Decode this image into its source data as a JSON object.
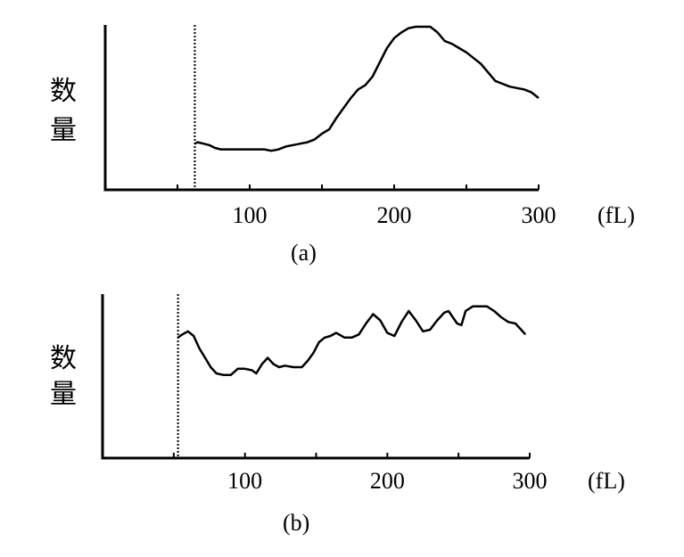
{
  "chart_data": [
    {
      "type": "line",
      "panel_label": "(a)",
      "ylabel": "数量",
      "xunit": "(fL)",
      "xlim": [
        0,
        300
      ],
      "ylim": [
        0,
        100
      ],
      "xticks": [
        50,
        100,
        150,
        200,
        250,
        300
      ],
      "xtick_labels": [
        "100",
        "200",
        "300"
      ],
      "xtick_label_values": [
        100,
        200,
        300
      ],
      "threshold_x": 62,
      "grid": false,
      "series": [
        {
          "x": [
            62,
            64,
            68,
            72,
            76,
            80,
            85,
            90,
            95,
            100,
            105,
            110,
            115,
            120,
            125,
            130,
            135,
            140,
            145,
            150,
            155,
            160,
            165,
            170,
            175,
            180,
            185,
            190,
            195,
            200,
            205,
            210,
            215,
            220,
            225,
            230,
            235,
            240,
            245,
            250,
            255,
            260,
            265,
            270,
            275,
            280,
            285,
            290,
            295,
            300
          ],
          "y": [
            18,
            19,
            18,
            17,
            15,
            14,
            14,
            14,
            14,
            14,
            14,
            14,
            13,
            14,
            16,
            17,
            18,
            19,
            21,
            25,
            28,
            36,
            43,
            50,
            56,
            59,
            65,
            75,
            85,
            92,
            96,
            99,
            100,
            100,
            100,
            96,
            90,
            88,
            85,
            82,
            78,
            74,
            68,
            62,
            60,
            58,
            57,
            56,
            54,
            50
          ]
        }
      ]
    },
    {
      "type": "line",
      "panel_label": "(b)",
      "ylabel": "数量",
      "xunit": "(fL)",
      "xlim": [
        0,
        300
      ],
      "ylim": [
        0,
        100
      ],
      "xticks": [
        50,
        100,
        150,
        200,
        250,
        300
      ],
      "xtick_labels": [
        "100",
        "200",
        "300"
      ],
      "xtick_label_values": [
        100,
        200,
        300
      ],
      "threshold_x": 53,
      "grid": false,
      "series": [
        {
          "x": [
            53,
            56,
            60,
            64,
            68,
            72,
            76,
            80,
            85,
            90,
            95,
            100,
            105,
            108,
            112,
            116,
            120,
            124,
            128,
            134,
            140,
            144,
            148,
            152,
            156,
            160,
            164,
            170,
            175,
            180,
            185,
            190,
            195,
            200,
            205,
            210,
            215,
            220,
            225,
            230,
            235,
            240,
            243,
            246,
            249,
            252,
            255,
            260,
            265,
            270,
            275,
            280,
            285,
            290,
            294,
            297
          ],
          "y": [
            75,
            77,
            79,
            76,
            68,
            62,
            56,
            52,
            51,
            51,
            55,
            55,
            54,
            52,
            58,
            62,
            58,
            56,
            57,
            56,
            56,
            60,
            65,
            72,
            75,
            76,
            78,
            75,
            75,
            77,
            84,
            90,
            86,
            78,
            76,
            85,
            92,
            86,
            79,
            80,
            86,
            91,
            92,
            88,
            84,
            83,
            92,
            95,
            95,
            95,
            92,
            88,
            85,
            84,
            80,
            77
          ]
        }
      ]
    }
  ]
}
